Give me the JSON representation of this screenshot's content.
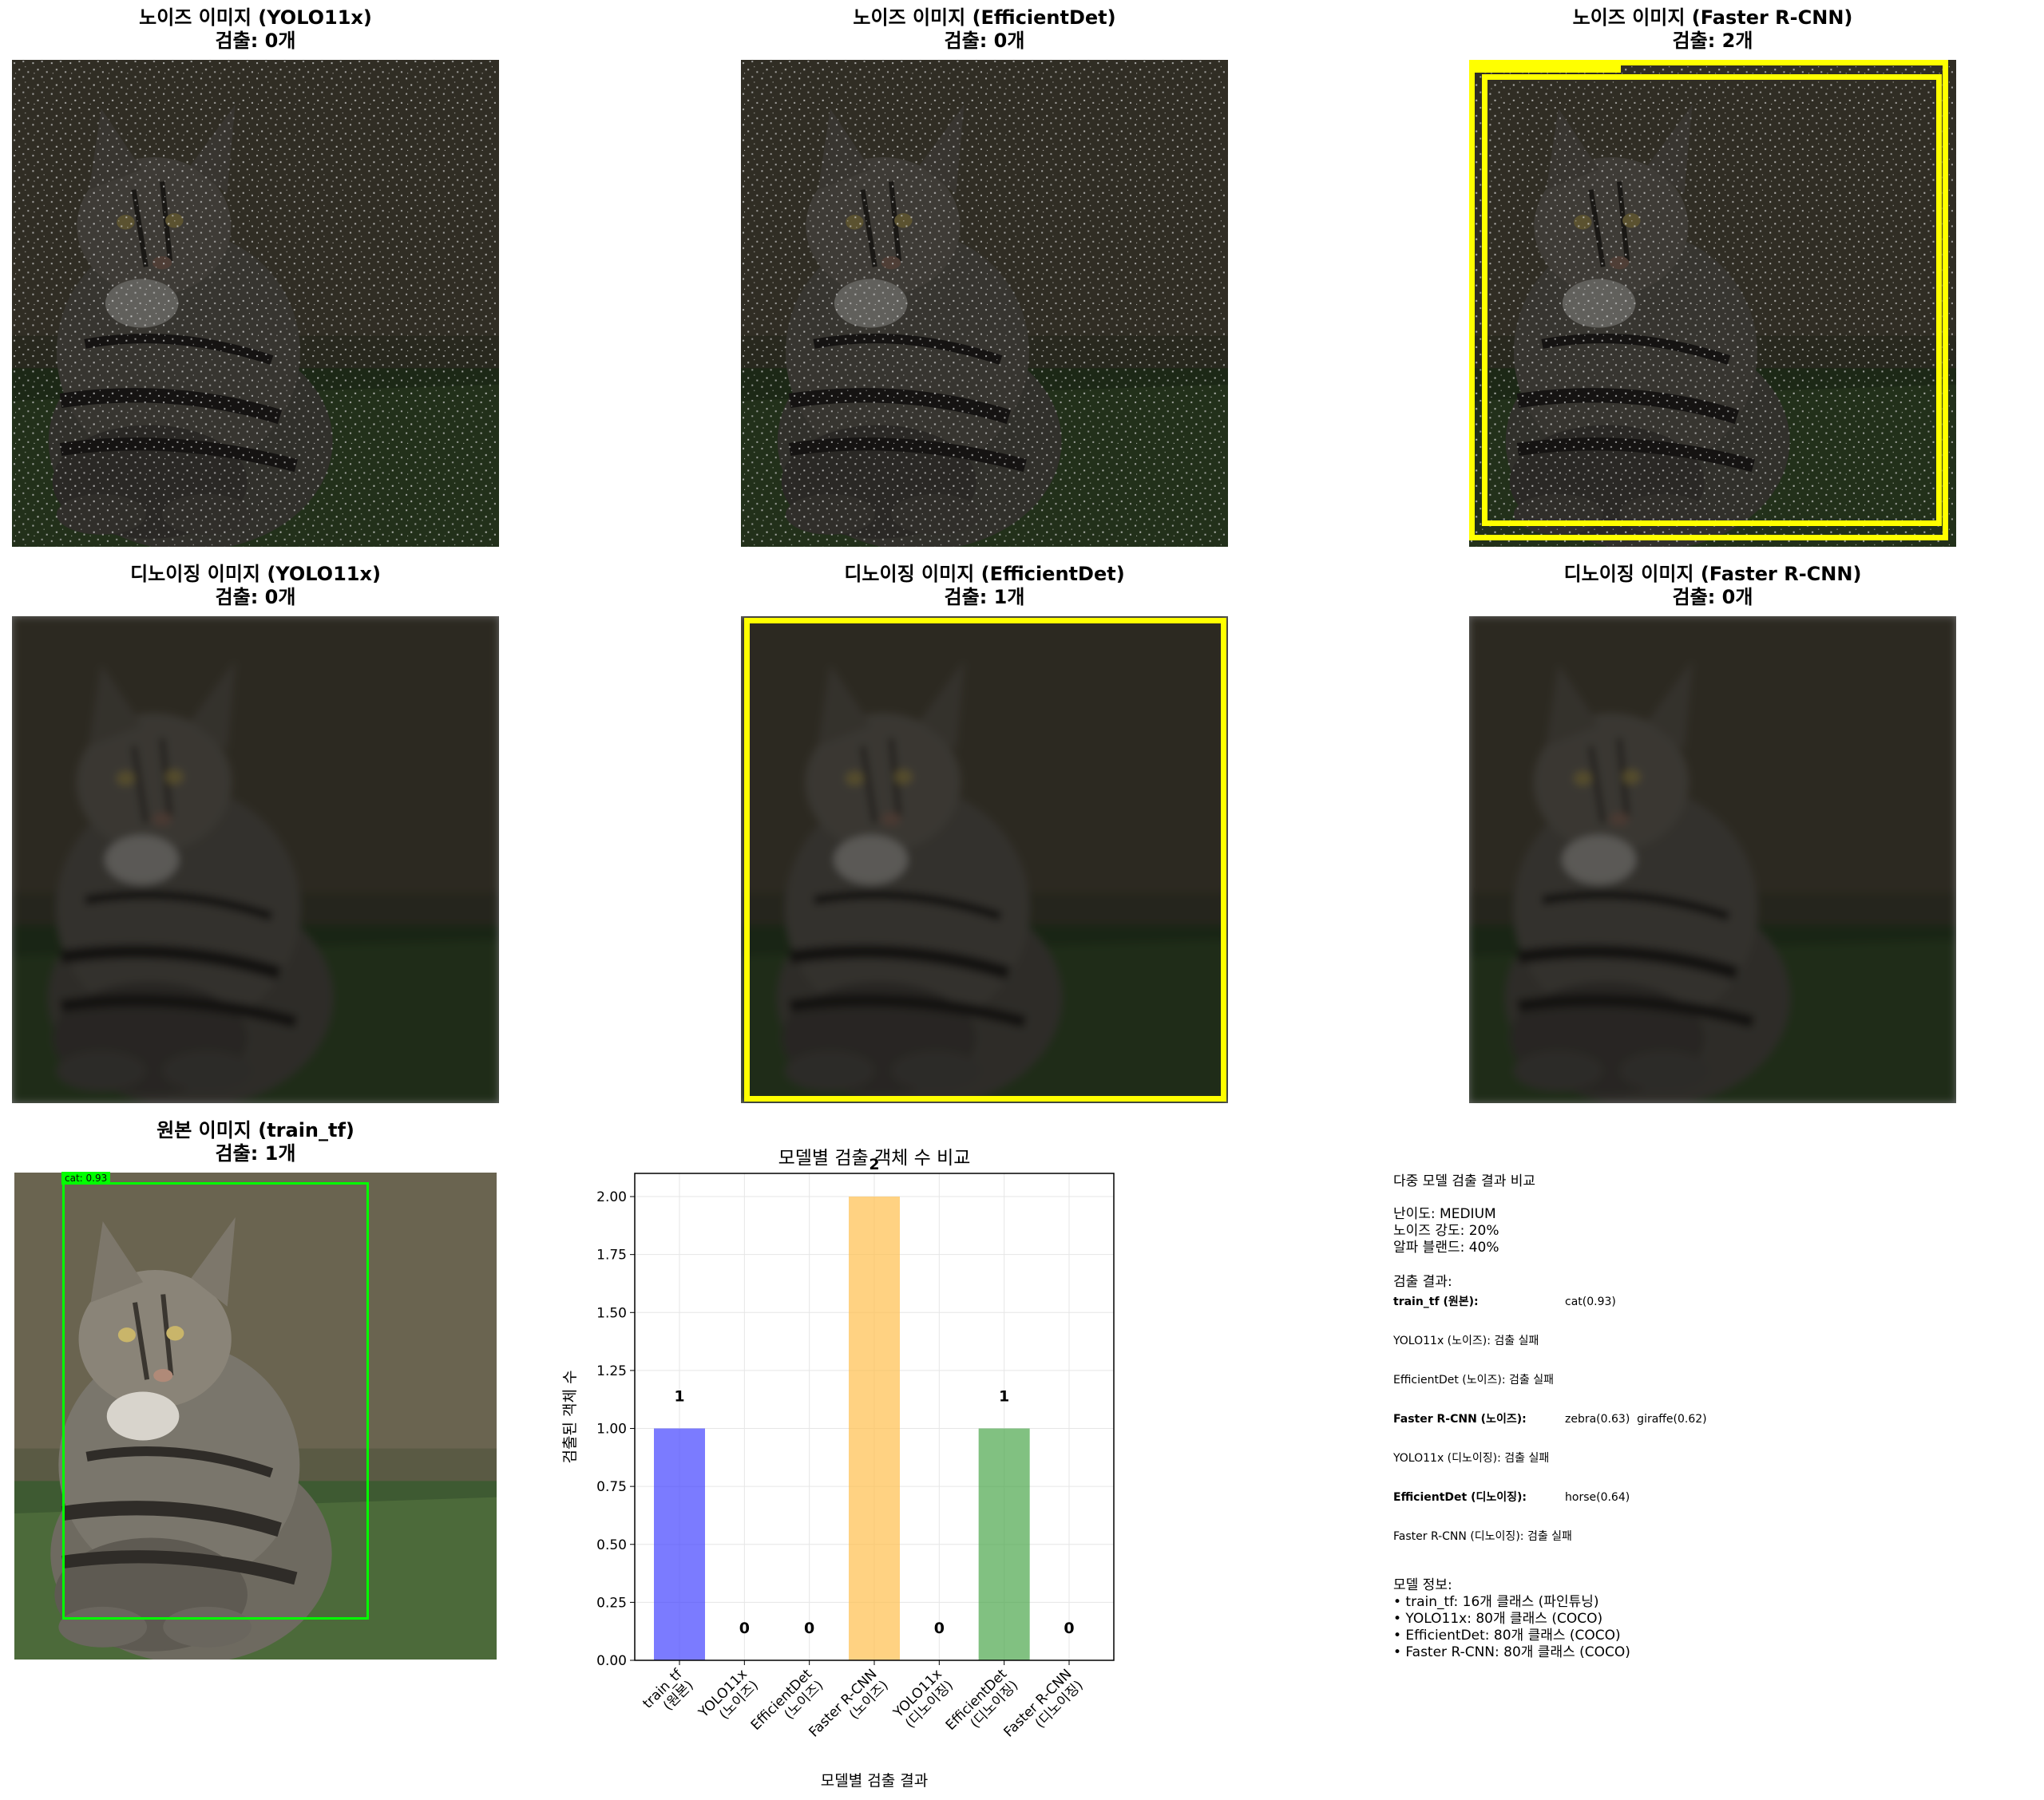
{
  "panels": {
    "noise_yolo": {
      "title": "노이즈 이미지 (YOLO11x)",
      "count": "검출: 0개"
    },
    "noise_eff": {
      "title": "노이즈 이미지 (EfficientDet)",
      "count": "검출: 0개"
    },
    "noise_frcnn": {
      "title": "노이즈 이미지 (Faster R-CNN)",
      "count": "검출: 2개"
    },
    "denoise_yolo": {
      "title": "디노이징 이미지 (YOLO11x)",
      "count": "검출: 0개"
    },
    "denoise_eff": {
      "title": "디노이징 이미지 (EfficientDet)",
      "count": "검출: 1개"
    },
    "denoise_frcnn": {
      "title": "디노이징 이미지 (Faster R-CNN)",
      "count": "검출: 0개"
    },
    "original": {
      "title": "원본 이미지 (train_tf)",
      "count": "검출: 1개",
      "box_label": "cat: 0.93"
    }
  },
  "colors": {
    "yellow_box": "#ffff00",
    "green_box": "#00ff00"
  },
  "chart_data": {
    "type": "bar",
    "title": "모델별 검출 객체 수 비교",
    "xlabel": "모델별 검출 결과",
    "ylabel": "검출된 객체 수",
    "categories": [
      [
        "train_tf",
        "(원본)"
      ],
      [
        "YOLO11x",
        "(노이즈)"
      ],
      [
        "EfficientDet",
        "(노이즈)"
      ],
      [
        "Faster R-CNN",
        "(노이즈)"
      ],
      [
        "YOLO11x",
        "(디노이징)"
      ],
      [
        "EfficientDet",
        "(디노이징)"
      ],
      [
        "Faster R-CNN",
        "(디노이징)"
      ]
    ],
    "values": [
      1,
      0,
      0,
      2,
      0,
      1,
      0
    ],
    "value_labels": [
      "1",
      "0",
      "0",
      "2",
      "0",
      "1",
      "0"
    ],
    "bar_colors": [
      "#4343ff",
      "#ff4343",
      "#a64ba6",
      "#ffbf4d",
      "#a65a36",
      "#4ba64b",
      "#ff85cc"
    ],
    "ylim": [
      0,
      2.1
    ],
    "yticks": [
      "0.00",
      "0.25",
      "0.50",
      "0.75",
      "1.00",
      "1.25",
      "1.50",
      "1.75",
      "2.00"
    ],
    "grid": true
  },
  "info": {
    "heading": "다중 모델 검출 결과 비교",
    "difficulty": "난이도: MEDIUM",
    "noise": "노이즈 강도: 20%",
    "alpha": "알파 블랜드: 40%",
    "results_heading": "검출 결과:",
    "results": [
      {
        "model": "train_tf (원본):",
        "detail": "cat(0.93)",
        "bold": true
      },
      {
        "model": "YOLO11x (노이즈): 검출 실패",
        "detail": "",
        "bold": false
      },
      {
        "model": "EfficientDet (노이즈): 검출 실패",
        "detail": "",
        "bold": false
      },
      {
        "model": "Faster R-CNN (노이즈):",
        "detail": "zebra(0.63)  giraffe(0.62)",
        "bold": true
      },
      {
        "model": "YOLO11x (디노이징): 검출 실패",
        "detail": "",
        "bold": false
      },
      {
        "model": "EfficientDet (디노이징):",
        "detail": "horse(0.64)",
        "bold": true
      },
      {
        "model": "Faster R-CNN (디노이징): 검출 실패",
        "detail": "",
        "bold": false
      }
    ],
    "model_heading": "모델 정보:",
    "models": [
      "• train_tf: 16개 클래스 (파인튜닝)",
      "• YOLO11x: 80개 클래스 (COCO)",
      "• EfficientDet: 80개 클래스 (COCO)",
      "• Faster R-CNN: 80개 클래스 (COCO)"
    ]
  }
}
